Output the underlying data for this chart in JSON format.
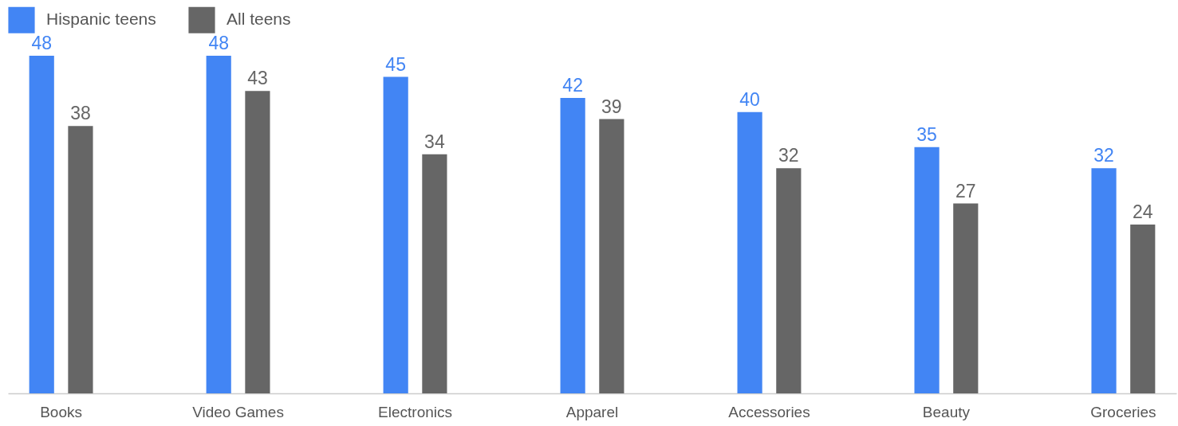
{
  "chart_data": {
    "type": "bar",
    "categories": [
      "Books",
      "Video Games",
      "Electronics",
      "Apparel",
      "Accessories",
      "Beauty",
      "Groceries"
    ],
    "series": [
      {
        "name": "Hispanic teens",
        "color": "#4285f4",
        "values": [
          48,
          48,
          45,
          42,
          40,
          35,
          32
        ]
      },
      {
        "name": "All teens",
        "color": "#666666",
        "values": [
          38,
          43,
          34,
          39,
          32,
          27,
          24
        ]
      }
    ],
    "data_labels": true,
    "legend": "top left"
  }
}
